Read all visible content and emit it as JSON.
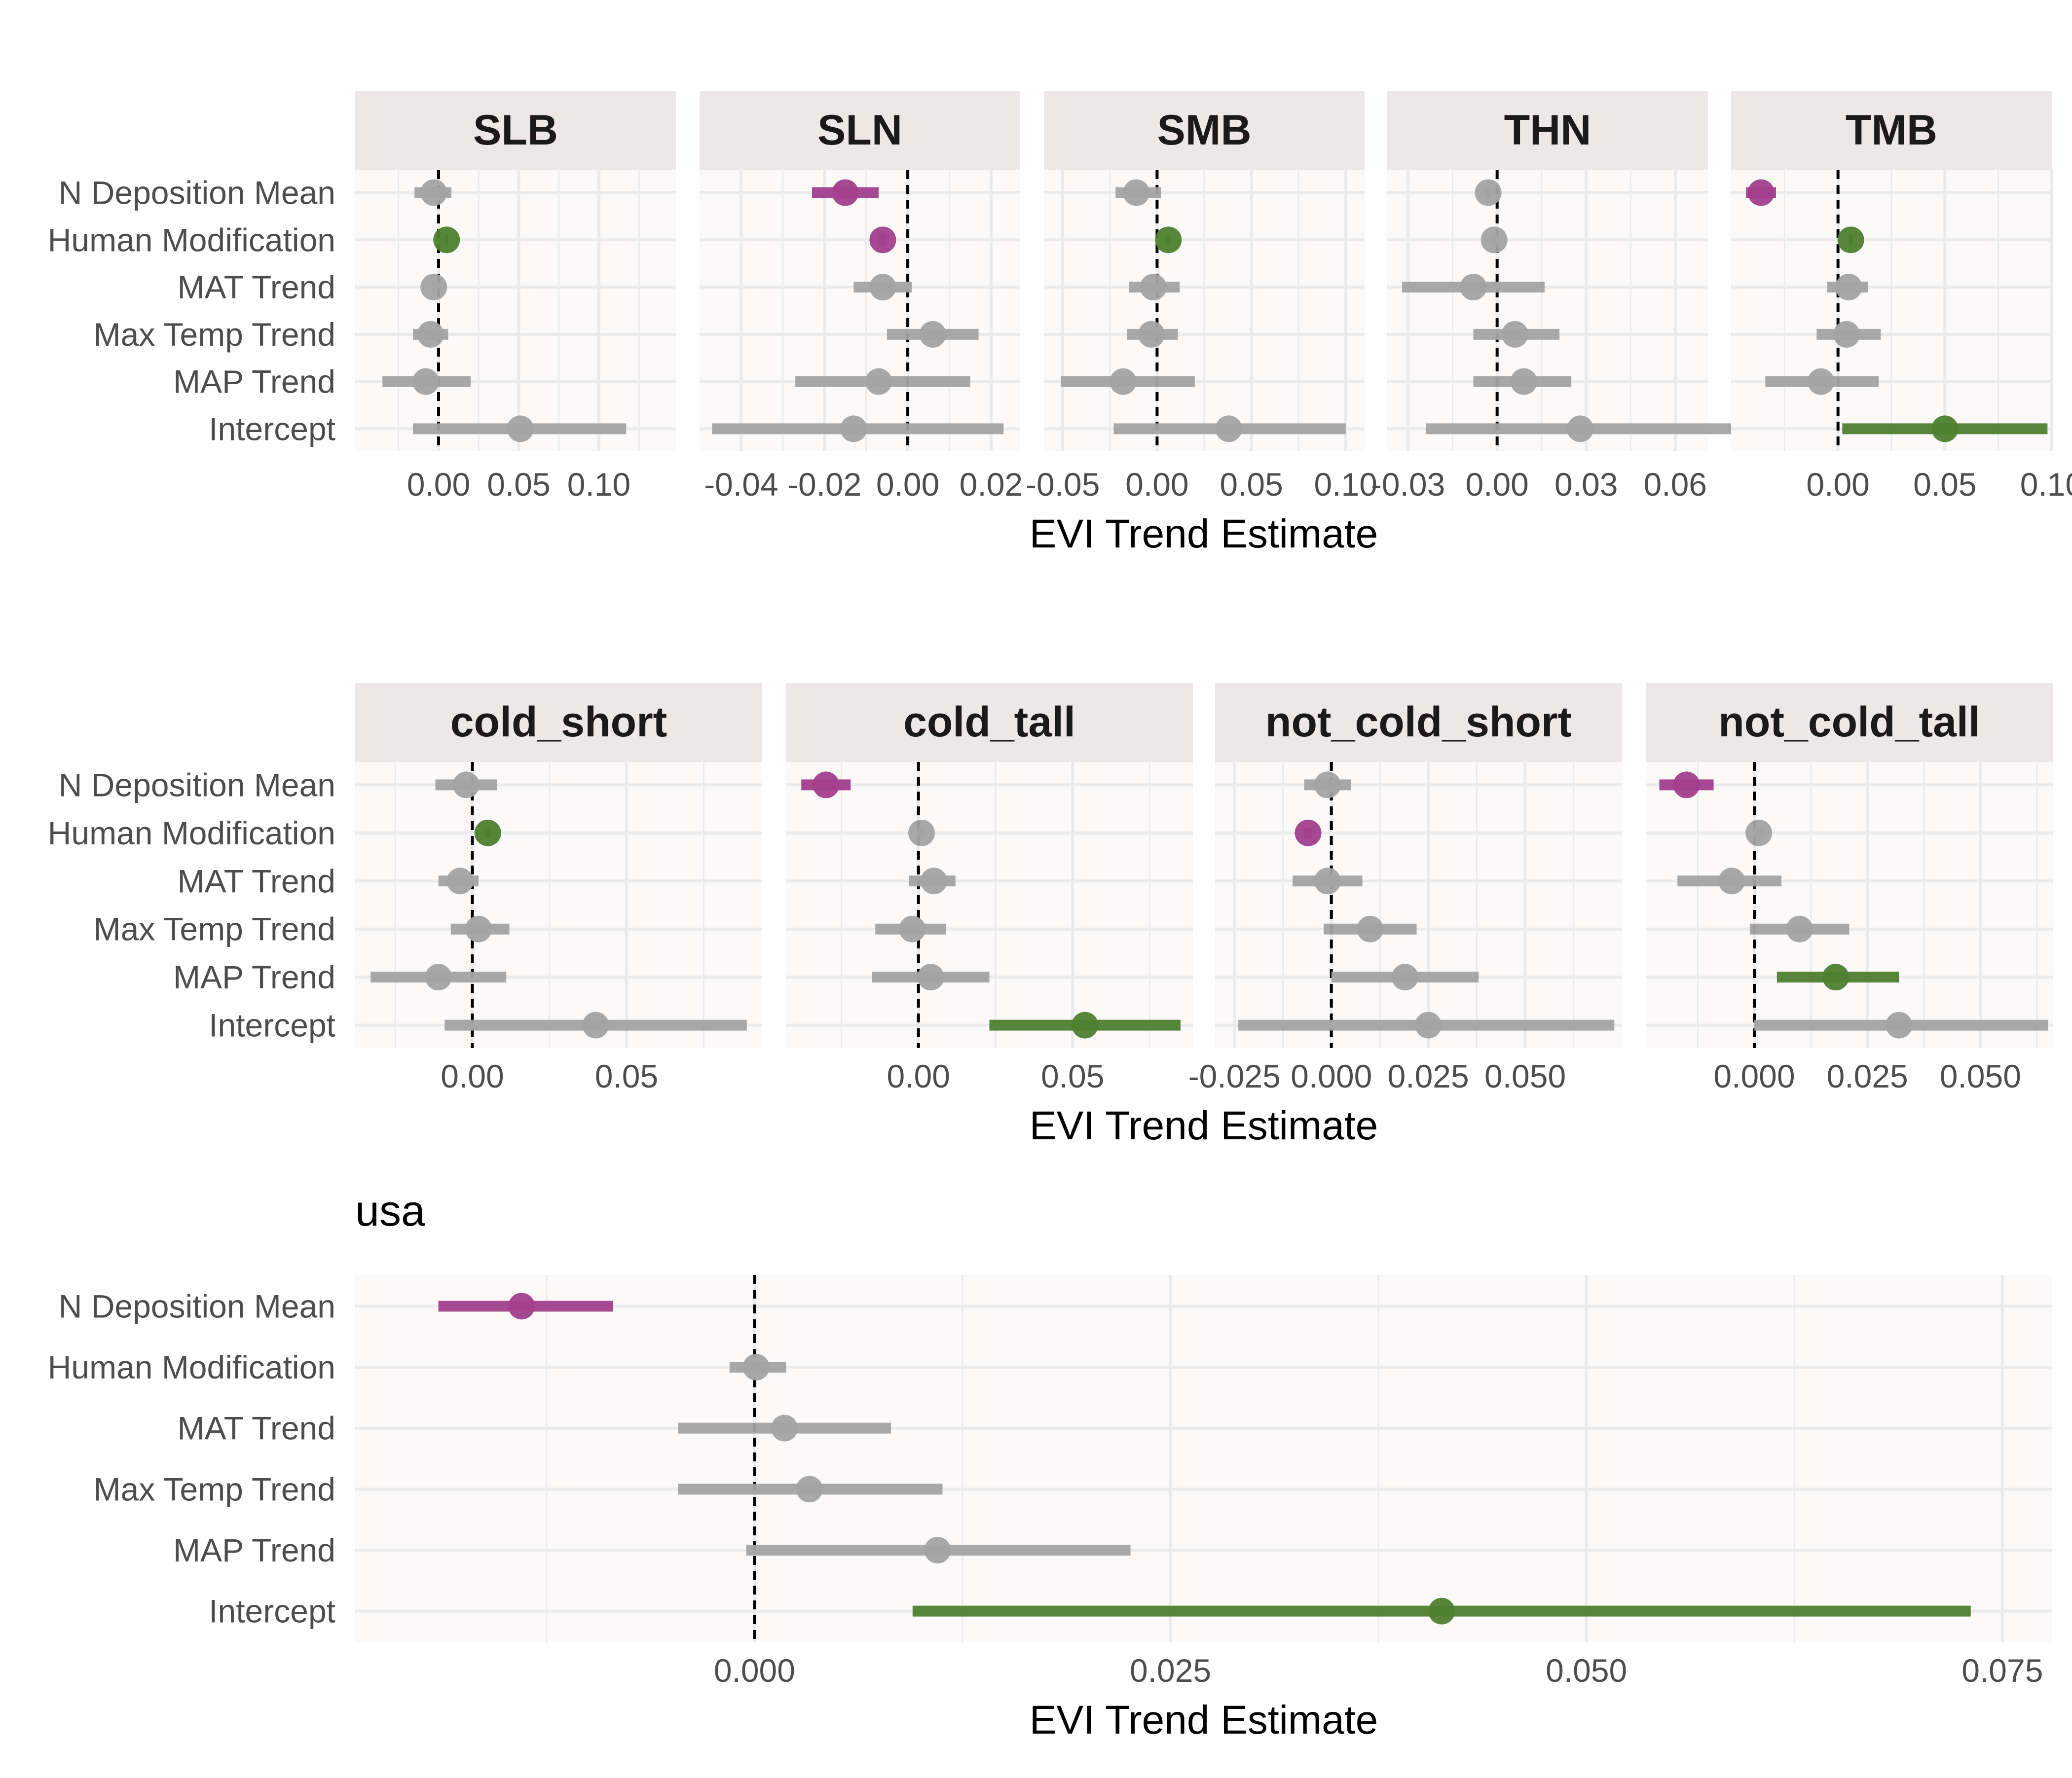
{
  "chart_data": {
    "type": "forest",
    "xlabel": "EVI Trend Estimate",
    "colors": {
      "significant_positive": "#4E7F30",
      "significant_negative": "#A23F8C",
      "not_significant": "#A3A3A3",
      "strip_background": "#ECE8E7",
      "panel_background": "#FCFAF9",
      "grid": "#EBEBEB",
      "zero_line": "#000000"
    },
    "terms": [
      "N Deposition Mean",
      "Human Modification",
      "MAT Trend",
      "Max Temp Trend",
      "MAP Trend",
      "Intercept"
    ],
    "rows": [
      {
        "facets": [
          {
            "title": "SLB",
            "xlim": [
              -0.052,
              0.148
            ],
            "ticks": [
              {
                "value": 0,
                "label": "0.00"
              },
              {
                "value": 0.05,
                "label": "0.05"
              },
              {
                "value": 0.1,
                "label": "0.10"
              }
            ],
            "points": [
              {
                "term": "N Deposition Mean",
                "estimate": -0.003,
                "lower": -0.015,
                "upper": 0.008,
                "sig": "none"
              },
              {
                "term": "Human Modification",
                "estimate": 0.005,
                "lower": 0.004,
                "upper": 0.006,
                "sig": "pos"
              },
              {
                "term": "MAT Trend",
                "estimate": -0.003,
                "lower": -0.004,
                "upper": -0.002,
                "sig": "none"
              },
              {
                "term": "Max Temp Trend",
                "estimate": -0.005,
                "lower": -0.016,
                "upper": 0.006,
                "sig": "none"
              },
              {
                "term": "MAP Trend",
                "estimate": -0.008,
                "lower": -0.035,
                "upper": 0.02,
                "sig": "none"
              },
              {
                "term": "Intercept",
                "estimate": 0.051,
                "lower": -0.016,
                "upper": 0.117,
                "sig": "none"
              }
            ]
          },
          {
            "title": "SLN",
            "xlim": [
              -0.05,
              0.027
            ],
            "ticks": [
              {
                "value": -0.04,
                "label": "-0.04"
              },
              {
                "value": -0.02,
                "label": "-0.02"
              },
              {
                "value": 0,
                "label": "0.00"
              },
              {
                "value": 0.02,
                "label": "0.02"
              }
            ],
            "points": [
              {
                "term": "N Deposition Mean",
                "estimate": -0.015,
                "lower": -0.023,
                "upper": -0.007,
                "sig": "neg"
              },
              {
                "term": "Human Modification",
                "estimate": -0.006,
                "lower": -0.007,
                "upper": -0.005,
                "sig": "neg"
              },
              {
                "term": "MAT Trend",
                "estimate": -0.006,
                "lower": -0.013,
                "upper": 0.001,
                "sig": "none"
              },
              {
                "term": "Max Temp Trend",
                "estimate": 0.006,
                "lower": -0.005,
                "upper": 0.017,
                "sig": "none"
              },
              {
                "term": "MAP Trend",
                "estimate": -0.007,
                "lower": -0.027,
                "upper": 0.015,
                "sig": "none"
              },
              {
                "term": "Intercept",
                "estimate": -0.013,
                "lower": -0.047,
                "upper": 0.023,
                "sig": "none"
              }
            ]
          },
          {
            "title": "SMB",
            "xlim": [
              -0.06,
              0.11
            ],
            "ticks": [
              {
                "value": -0.05,
                "label": "-0.05"
              },
              {
                "value": 0,
                "label": "0.00"
              },
              {
                "value": 0.05,
                "label": "0.05"
              },
              {
                "value": 0.1,
                "label": "0.10"
              }
            ],
            "points": [
              {
                "term": "N Deposition Mean",
                "estimate": -0.011,
                "lower": -0.022,
                "upper": 0.002,
                "sig": "none"
              },
              {
                "term": "Human Modification",
                "estimate": 0.006,
                "lower": 0.005,
                "upper": 0.007,
                "sig": "pos"
              },
              {
                "term": "MAT Trend",
                "estimate": -0.002,
                "lower": -0.015,
                "upper": 0.012,
                "sig": "none"
              },
              {
                "term": "Max Temp Trend",
                "estimate": -0.003,
                "lower": -0.016,
                "upper": 0.011,
                "sig": "none"
              },
              {
                "term": "MAP Trend",
                "estimate": -0.018,
                "lower": -0.051,
                "upper": 0.02,
                "sig": "none"
              },
              {
                "term": "Intercept",
                "estimate": 0.038,
                "lower": -0.023,
                "upper": 0.1,
                "sig": "none"
              }
            ]
          },
          {
            "title": "THN",
            "xlim": [
              -0.037,
              0.071
            ],
            "ticks": [
              {
                "value": -0.03,
                "label": "-0.03"
              },
              {
                "value": 0,
                "label": "0.00"
              },
              {
                "value": 0.03,
                "label": "0.03"
              },
              {
                "value": 0.06,
                "label": "0.06"
              }
            ],
            "points": [
              {
                "term": "N Deposition Mean",
                "estimate": -0.003,
                "lower": -0.004,
                "upper": -0.002,
                "sig": "none"
              },
              {
                "term": "Human Modification",
                "estimate": -0.001,
                "lower": -0.002,
                "upper": 0.0,
                "sig": "none"
              },
              {
                "term": "MAT Trend",
                "estimate": -0.008,
                "lower": -0.032,
                "upper": 0.016,
                "sig": "none"
              },
              {
                "term": "Max Temp Trend",
                "estimate": 0.006,
                "lower": -0.008,
                "upper": 0.021,
                "sig": "none"
              },
              {
                "term": "MAP Trend",
                "estimate": 0.009,
                "lower": -0.008,
                "upper": 0.025,
                "sig": "none"
              },
              {
                "term": "Intercept",
                "estimate": 0.028,
                "lower": -0.024,
                "upper": 0.079,
                "sig": "none"
              }
            ]
          },
          {
            "title": "TMB",
            "xlim": [
              -0.05,
              0.1
            ],
            "ticks": [
              {
                "value": 0,
                "label": "0.00"
              },
              {
                "value": 0.05,
                "label": "0.05"
              },
              {
                "value": 0.1,
                "label": "0.10"
              }
            ],
            "points": [
              {
                "term": "N Deposition Mean",
                "estimate": -0.036,
                "lower": -0.043,
                "upper": -0.029,
                "sig": "neg"
              },
              {
                "term": "Human Modification",
                "estimate": 0.006,
                "lower": 0.005,
                "upper": 0.007,
                "sig": "pos"
              },
              {
                "term": "MAT Trend",
                "estimate": 0.005,
                "lower": -0.005,
                "upper": 0.014,
                "sig": "none"
              },
              {
                "term": "Max Temp Trend",
                "estimate": 0.004,
                "lower": -0.01,
                "upper": 0.02,
                "sig": "none"
              },
              {
                "term": "MAP Trend",
                "estimate": -0.008,
                "lower": -0.034,
                "upper": 0.019,
                "sig": "none"
              },
              {
                "term": "Intercept",
                "estimate": 0.05,
                "lower": 0.002,
                "upper": 0.098,
                "sig": "pos"
              }
            ]
          }
        ]
      },
      {
        "facets": [
          {
            "title": "cold_short",
            "xlim": [
              -0.038,
              0.094
            ],
            "ticks": [
              {
                "value": 0,
                "label": "0.00"
              },
              {
                "value": 0.05,
                "label": "0.05"
              }
            ],
            "points": [
              {
                "term": "N Deposition Mean",
                "estimate": -0.002,
                "lower": -0.012,
                "upper": 0.008,
                "sig": "none"
              },
              {
                "term": "Human Modification",
                "estimate": 0.005,
                "lower": 0.004,
                "upper": 0.006,
                "sig": "pos"
              },
              {
                "term": "MAT Trend",
                "estimate": -0.004,
                "lower": -0.011,
                "upper": 0.002,
                "sig": "none"
              },
              {
                "term": "Max Temp Trend",
                "estimate": 0.002,
                "lower": -0.007,
                "upper": 0.012,
                "sig": "none"
              },
              {
                "term": "MAP Trend",
                "estimate": -0.011,
                "lower": -0.033,
                "upper": 0.011,
                "sig": "none"
              },
              {
                "term": "Intercept",
                "estimate": 0.04,
                "lower": -0.009,
                "upper": 0.089,
                "sig": "none"
              }
            ]
          },
          {
            "title": "cold_tall",
            "xlim": [
              -0.043,
              0.089
            ],
            "ticks": [
              {
                "value": 0,
                "label": "0.00"
              },
              {
                "value": 0.05,
                "label": "0.05"
              }
            ],
            "points": [
              {
                "term": "N Deposition Mean",
                "estimate": -0.03,
                "lower": -0.038,
                "upper": -0.022,
                "sig": "neg"
              },
              {
                "term": "Human Modification",
                "estimate": 0.001,
                "lower": 0.0,
                "upper": 0.002,
                "sig": "none"
              },
              {
                "term": "MAT Trend",
                "estimate": 0.005,
                "lower": -0.003,
                "upper": 0.012,
                "sig": "none"
              },
              {
                "term": "Max Temp Trend",
                "estimate": -0.002,
                "lower": -0.014,
                "upper": 0.009,
                "sig": "none"
              },
              {
                "term": "MAP Trend",
                "estimate": 0.004,
                "lower": -0.015,
                "upper": 0.023,
                "sig": "none"
              },
              {
                "term": "Intercept",
                "estimate": 0.054,
                "lower": 0.023,
                "upper": 0.085,
                "sig": "pos"
              }
            ]
          },
          {
            "title": "not_cold_short",
            "xlim": [
              -0.03,
              0.075
            ],
            "ticks": [
              {
                "value": -0.025,
                "label": "-0.025"
              },
              {
                "value": 0,
                "label": "0.000"
              },
              {
                "value": 0.025,
                "label": "0.025"
              },
              {
                "value": 0.05,
                "label": "0.050"
              }
            ],
            "points": [
              {
                "term": "N Deposition Mean",
                "estimate": -0.001,
                "lower": -0.007,
                "upper": 0.005,
                "sig": "none"
              },
              {
                "term": "Human Modification",
                "estimate": -0.006,
                "lower": -0.007,
                "upper": -0.005,
                "sig": "neg"
              },
              {
                "term": "MAT Trend",
                "estimate": -0.001,
                "lower": -0.01,
                "upper": 0.008,
                "sig": "none"
              },
              {
                "term": "Max Temp Trend",
                "estimate": 0.01,
                "lower": -0.002,
                "upper": 0.022,
                "sig": "none"
              },
              {
                "term": "MAP Trend",
                "estimate": 0.019,
                "lower": 0.0,
                "upper": 0.038,
                "sig": "none"
              },
              {
                "term": "Intercept",
                "estimate": 0.025,
                "lower": -0.024,
                "upper": 0.073,
                "sig": "none"
              }
            ]
          },
          {
            "title": "not_cold_tall",
            "xlim": [
              -0.024,
              0.066
            ],
            "ticks": [
              {
                "value": 0,
                "label": "0.000"
              },
              {
                "value": 0.025,
                "label": "0.025"
              },
              {
                "value": 0.05,
                "label": "0.050"
              }
            ],
            "points": [
              {
                "term": "N Deposition Mean",
                "estimate": -0.015,
                "lower": -0.021,
                "upper": -0.009,
                "sig": "neg"
              },
              {
                "term": "Human Modification",
                "estimate": 0.001,
                "lower": 0.0,
                "upper": 0.002,
                "sig": "none"
              },
              {
                "term": "MAT Trend",
                "estimate": -0.005,
                "lower": -0.017,
                "upper": 0.006,
                "sig": "none"
              },
              {
                "term": "Max Temp Trend",
                "estimate": 0.01,
                "lower": -0.001,
                "upper": 0.021,
                "sig": "none"
              },
              {
                "term": "MAP Trend",
                "estimate": 0.018,
                "lower": 0.005,
                "upper": 0.032,
                "sig": "pos"
              },
              {
                "term": "Intercept",
                "estimate": 0.032,
                "lower": 0.0,
                "upper": 0.065,
                "sig": "none"
              }
            ]
          }
        ]
      },
      {
        "facets": [
          {
            "title": "usa",
            "xlim": [
              -0.024,
              0.078
            ],
            "ticks": [
              {
                "value": 0,
                "label": "0.000"
              },
              {
                "value": 0.025,
                "label": "0.025"
              },
              {
                "value": 0.05,
                "label": "0.050"
              },
              {
                "value": 0.075,
                "label": "0.075"
              }
            ],
            "points": [
              {
                "term": "N Deposition Mean",
                "estimate": -0.014,
                "lower": -0.019,
                "upper": -0.0085,
                "sig": "neg"
              },
              {
                "term": "Human Modification",
                "estimate": 0.0001,
                "lower": -0.0015,
                "upper": 0.0019,
                "sig": "none"
              },
              {
                "term": "MAT Trend",
                "estimate": 0.0018,
                "lower": -0.0046,
                "upper": 0.0082,
                "sig": "none"
              },
              {
                "term": "Max Temp Trend",
                "estimate": 0.0033,
                "lower": -0.0046,
                "upper": 0.0113,
                "sig": "none"
              },
              {
                "term": "MAP Trend",
                "estimate": 0.011,
                "lower": -0.0005,
                "upper": 0.0226,
                "sig": "none"
              },
              {
                "term": "Intercept",
                "estimate": 0.0413,
                "lower": 0.0095,
                "upper": 0.0731,
                "sig": "pos"
              }
            ]
          }
        ]
      }
    ]
  }
}
